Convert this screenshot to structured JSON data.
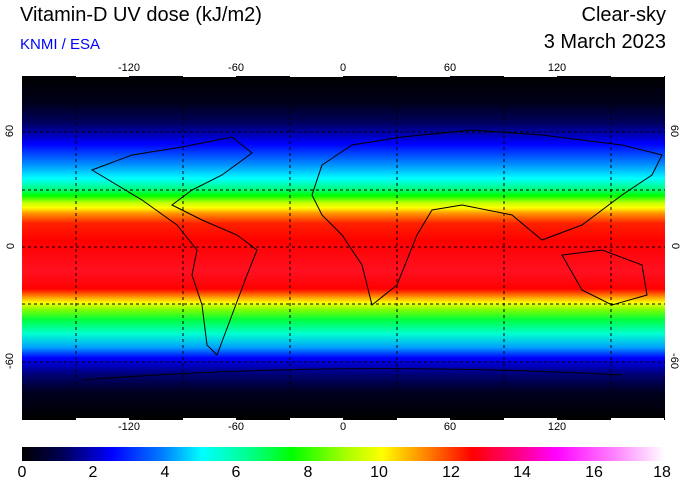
{
  "header": {
    "title": "Vitamin-D UV dose (kJ/m2)",
    "credit": "KNMI / ESA",
    "condition": "Clear-sky",
    "date": "3 March 2023"
  },
  "map": {
    "lon_ticks": [
      "-120",
      "-60",
      "0",
      "60",
      "120"
    ],
    "lat_ticks": [
      "60",
      "0",
      "-60"
    ]
  },
  "colorbar": {
    "unit": "kJ/m2",
    "range": [
      0,
      18
    ],
    "ticks": [
      "0",
      "2",
      "4",
      "6",
      "8",
      "10",
      "12",
      "14",
      "16",
      "18"
    ],
    "colors": {
      "0": "#000000",
      "2": "#0000ff",
      "5": "#00ffff",
      "7.5": "#00ff00",
      "10": "#ffff00",
      "12.5": "#ff0000",
      "15": "#ff00ff",
      "18": "#ffffff"
    }
  }
}
